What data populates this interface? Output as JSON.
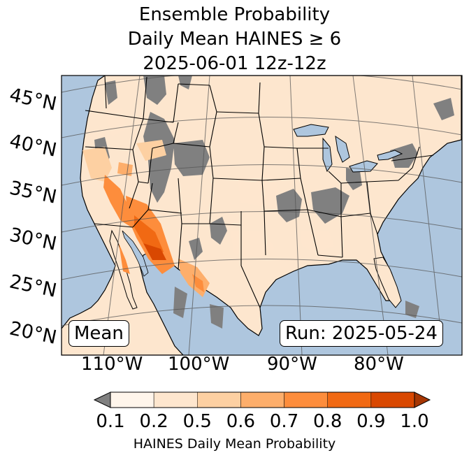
{
  "title": {
    "line1": "Ensemble Probability",
    "line2": "Daily Mean HAINES ≥ 6",
    "line3": "2025-06-01 12z-12z"
  },
  "map": {
    "ocean_color": "#aec6de",
    "land_base_color": "#fde6ce",
    "no_data_color": "#808080",
    "latitude_labels": [
      "45°N",
      "40°N",
      "35°N",
      "30°N",
      "25°N",
      "20°N"
    ],
    "longitude_labels": [
      "110°W",
      "100°W",
      "90°W",
      "80°W"
    ]
  },
  "annotations": {
    "mean_label": "Mean",
    "run_label": "Run: 2025-05-24"
  },
  "colorbar": {
    "ticks": [
      "0.1",
      "0.2",
      "0.5",
      "0.6",
      "0.7",
      "0.8",
      "0.9",
      "1.0"
    ],
    "colors": [
      "#fff5eb",
      "#fee6ce",
      "#fdd0a2",
      "#fdae6b",
      "#fd8d3c",
      "#f16913",
      "#d94801"
    ],
    "under_color": "#808080",
    "over_color": "#a63603",
    "label": "HAINES Daily Mean Probability"
  }
}
